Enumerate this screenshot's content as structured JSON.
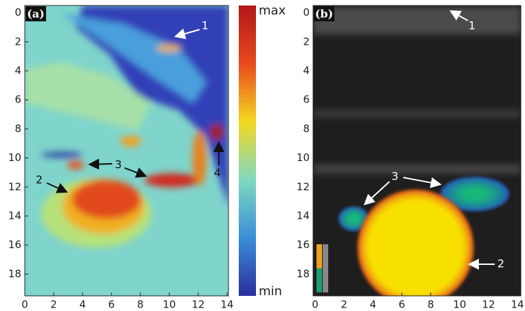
{
  "chart_data": [
    {
      "type": "image",
      "panel_label": "(a)",
      "xlim": [
        0,
        14
      ],
      "ylim": [
        -0.5,
        19.5
      ],
      "y_inverted": true,
      "xticks": [
        0,
        2,
        4,
        6,
        8,
        10,
        12,
        14
      ],
      "yticks": [
        0,
        2,
        4,
        6,
        8,
        10,
        12,
        14,
        16,
        18
      ],
      "colorbar": {
        "max_label": "max",
        "min_label": "min"
      },
      "annotations": [
        "1",
        "2",
        "3",
        "4"
      ]
    },
    {
      "type": "image",
      "panel_label": "(b)",
      "xlim": [
        0,
        14
      ],
      "ylim": [
        -0.5,
        19.5
      ],
      "y_inverted": true,
      "xticks": [
        0,
        2,
        4,
        6,
        8,
        10,
        12,
        14
      ],
      "yticks": [
        0,
        2,
        4,
        6,
        8,
        10,
        12,
        14,
        16,
        18
      ],
      "annotations": [
        "1",
        "3",
        "2"
      ]
    }
  ]
}
